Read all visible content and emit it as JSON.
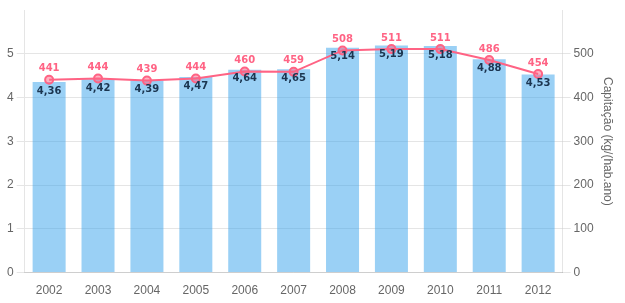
{
  "chart_data": {
    "type": "bar",
    "categories": [
      "2002",
      "2003",
      "2004",
      "2005",
      "2006",
      "2007",
      "2008",
      "2009",
      "2010",
      "2011",
      "2012"
    ],
    "series": [
      {
        "type": "bar",
        "values": [
          4.36,
          4.42,
          4.39,
          4.47,
          4.64,
          4.65,
          5.14,
          5.19,
          5.18,
          4.88,
          4.53
        ],
        "value_labels": [
          "4,36",
          "4,42",
          "4,39",
          "4,47",
          "4,64",
          "4,65",
          "5,14",
          "5,19",
          "5,18",
          "4,88",
          "4,53"
        ]
      },
      {
        "type": "line",
        "axis": "y2",
        "marker": "circle",
        "values": [
          441,
          444,
          439,
          444,
          460,
          459,
          508,
          511,
          511,
          486,
          454
        ]
      }
    ],
    "y2label": "Capitação (kg/(hab.ano)",
    "ylim": [
      0,
      6
    ],
    "yticks": [
      0,
      1,
      2,
      3,
      4,
      5
    ],
    "y2lim": [
      0,
      600
    ],
    "y2ticks": [
      0,
      100,
      200,
      300,
      400,
      500
    ],
    "grid": true,
    "data_labels": true
  }
}
